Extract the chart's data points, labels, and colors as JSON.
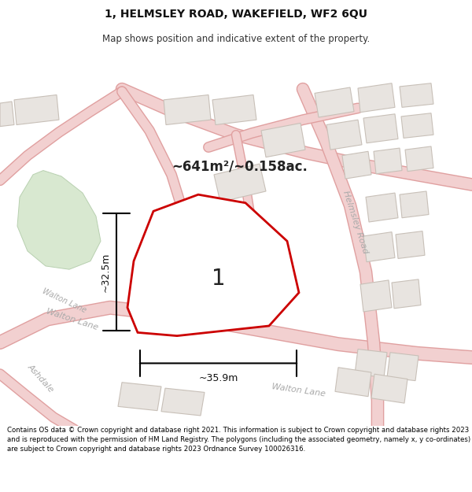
{
  "title": "1, HELMSLEY ROAD, WAKEFIELD, WF2 6QU",
  "subtitle": "Map shows position and indicative extent of the property.",
  "title_fontsize": 10,
  "subtitle_fontsize": 8.5,
  "map_bg": "#f7f7f7",
  "area_label": "~641m²/~0.158ac.",
  "plot_label": "1",
  "dim_h": "~32.5m",
  "dim_w": "~35.9m",
  "footer_text": "Contains OS data © Crown copyright and database right 2021. This information is subject to Crown copyright and database rights 2023 and is reproduced with the permission of HM Land Registry. The polygons (including the associated geometry, namely x, y co-ordinates) are subject to Crown copyright and database rights 2023 Ordnance Survey 100026316.",
  "road_fill": "#f2d0d0",
  "road_edge": "#e0a0a0",
  "building_fill": "#e8e4e0",
  "building_edge": "#c8c0b8",
  "green_fill": "#d8e8d0",
  "green_edge": "#b8d0b0",
  "plot_edge": "#cc0000",
  "plot_lw": 2.0,
  "label_color": "#222222",
  "road_label_color": "#aaaaaa",
  "dim_color": "#111111"
}
